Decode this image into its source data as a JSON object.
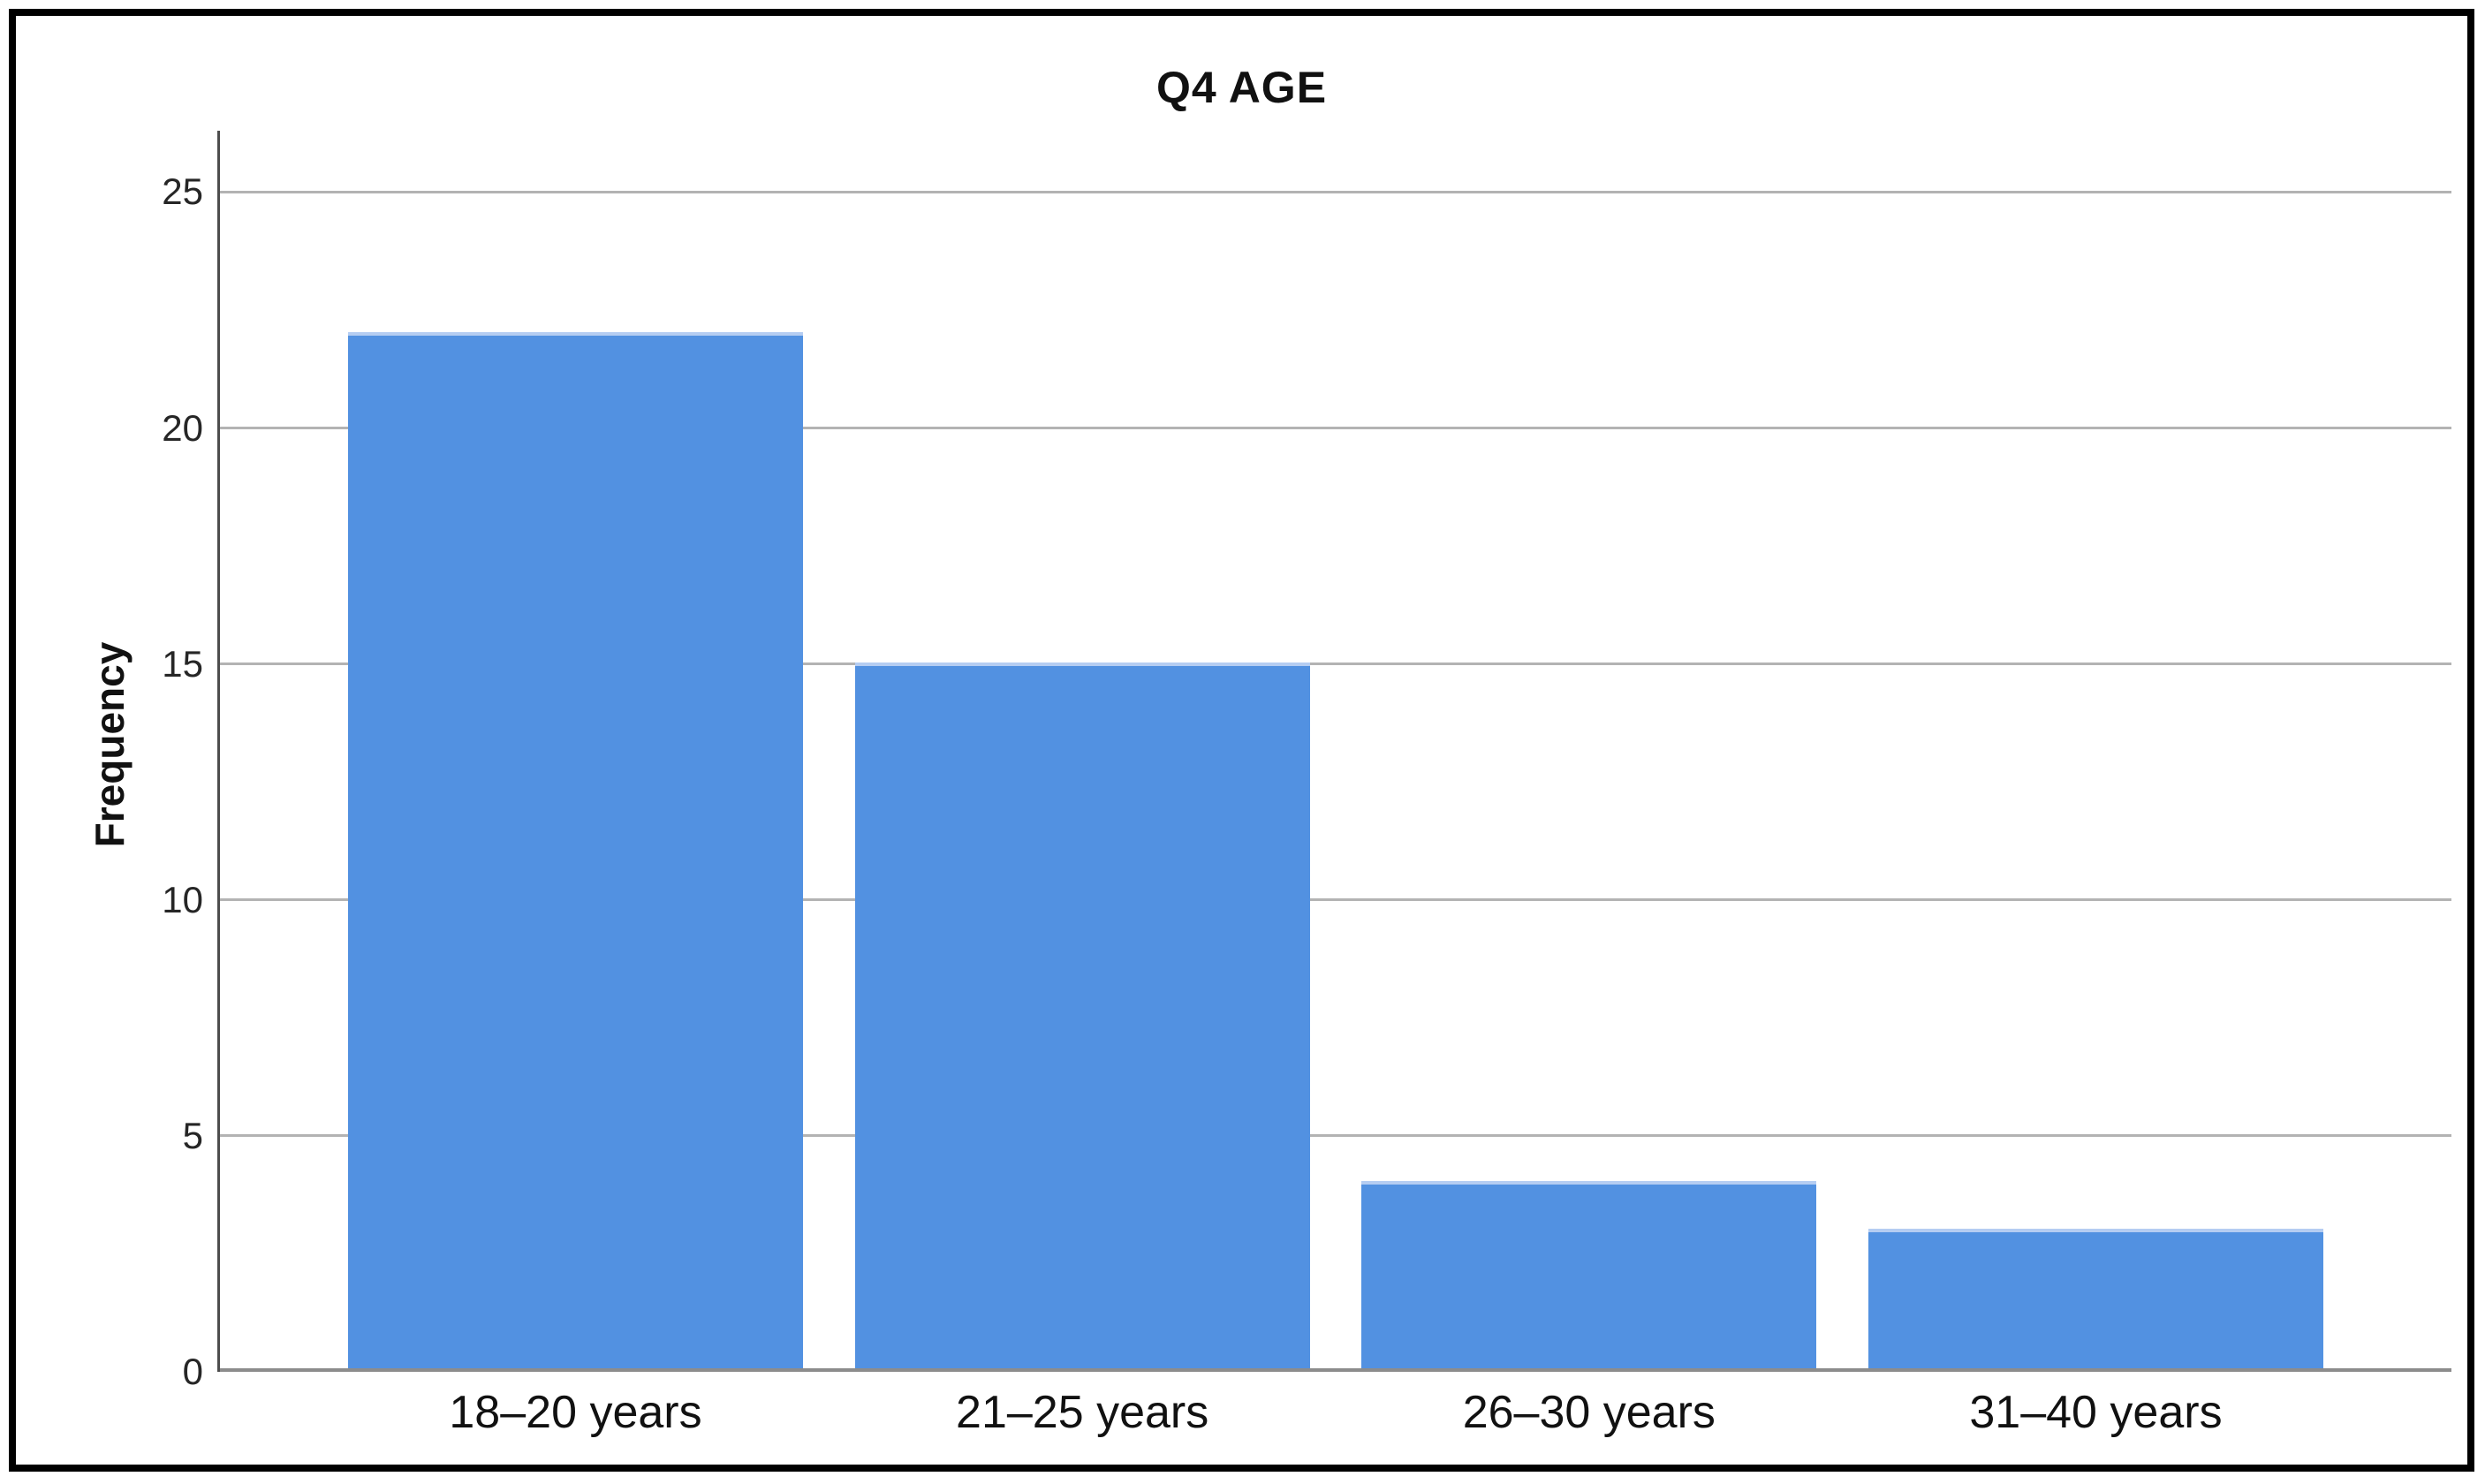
{
  "window": {
    "kind": "statistics-output-bar-chart"
  },
  "chart_data": {
    "type": "bar",
    "title": "Q4 AGE",
    "xlabel": "",
    "ylabel": "Frequency",
    "categories": [
      "18–20 years",
      "21–25 years",
      "26–30 years",
      "31–40 years"
    ],
    "values": [
      22,
      15,
      4,
      3
    ],
    "yticks": [
      0,
      5,
      10,
      15,
      20,
      25
    ],
    "ylim": [
      0,
      25
    ],
    "ylim_draw_max": 26.3,
    "grid": "horizontal",
    "legend": "none"
  },
  "colors": {
    "bar": "#5291e1",
    "bar_top_highlight": "#b5cdf2",
    "gridline": "#b3b3b3",
    "y_axis_line": "#4d4d4d",
    "x_axis_line": "#8c8c8c",
    "text": "#111111",
    "outer_border": "#000000",
    "background": "#ffffff"
  }
}
